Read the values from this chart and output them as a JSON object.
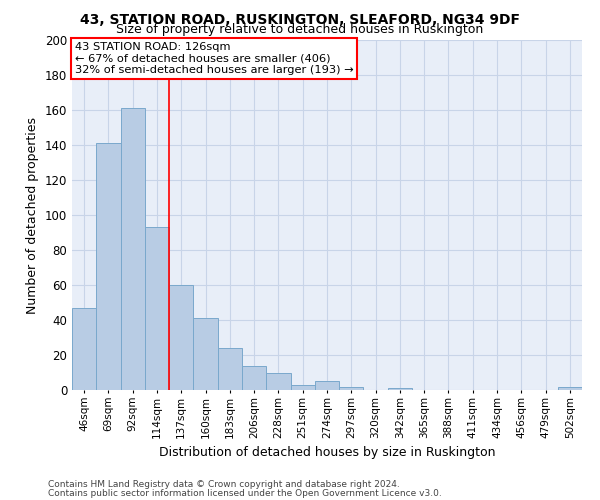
{
  "title1": "43, STATION ROAD, RUSKINGTON, SLEAFORD, NG34 9DF",
  "title2": "Size of property relative to detached houses in Ruskington",
  "xlabel": "Distribution of detached houses by size in Ruskington",
  "ylabel": "Number of detached properties",
  "categories": [
    "46sqm",
    "69sqm",
    "92sqm",
    "114sqm",
    "137sqm",
    "160sqm",
    "183sqm",
    "206sqm",
    "228sqm",
    "251sqm",
    "274sqm",
    "297sqm",
    "320sqm",
    "342sqm",
    "365sqm",
    "388sqm",
    "411sqm",
    "434sqm",
    "456sqm",
    "479sqm",
    "502sqm"
  ],
  "values": [
    47,
    141,
    161,
    93,
    60,
    41,
    24,
    14,
    10,
    3,
    5,
    2,
    0,
    1,
    0,
    0,
    0,
    0,
    0,
    0,
    2
  ],
  "bar_color": "#b8cce4",
  "bar_edge_color": "#7aa8cc",
  "grid_color": "#c8d4e8",
  "bg_color": "#e8eef8",
  "annotation_text_line1": "43 STATION ROAD: 126sqm",
  "annotation_text_line2": "← 67% of detached houses are smaller (406)",
  "annotation_text_line3": "32% of semi-detached houses are larger (193) →",
  "annotation_box_color": "white",
  "annotation_box_edge": "red",
  "red_line_x": 3.5,
  "ylim": [
    0,
    200
  ],
  "yticks": [
    0,
    20,
    40,
    60,
    80,
    100,
    120,
    140,
    160,
    180,
    200
  ],
  "footer1": "Contains HM Land Registry data © Crown copyright and database right 2024.",
  "footer2": "Contains public sector information licensed under the Open Government Licence v3.0."
}
